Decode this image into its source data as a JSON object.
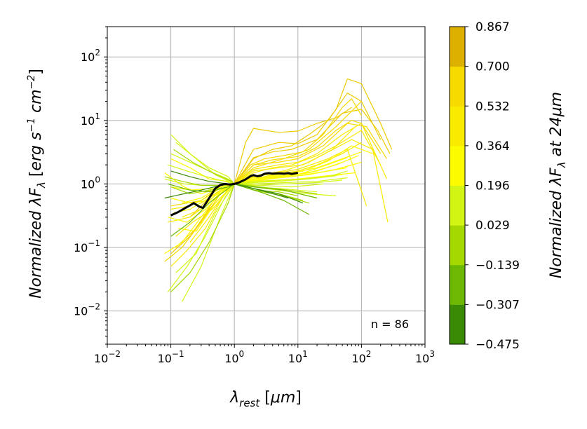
{
  "chart_data": {
    "type": "line",
    "xscale": "log",
    "yscale": "log",
    "xlim": [
      0.01,
      1000
    ],
    "ylim": [
      0.003,
      300
    ],
    "grid": true,
    "xlabel": "λrest [μm]",
    "ylabel": "Normalized λFλ [erg s⁻¹ cm⁻²]",
    "annotation": "n = 86",
    "x_ticks": [
      {
        "value": 0.01,
        "base": "10",
        "exp": "−2"
      },
      {
        "value": 0.1,
        "base": "10",
        "exp": "−1"
      },
      {
        "value": 1,
        "base": "10",
        "exp": "0"
      },
      {
        "value": 10,
        "base": "10",
        "exp": "1"
      },
      {
        "value": 100,
        "base": "10",
        "exp": "2"
      },
      {
        "value": 1000,
        "base": "10",
        "exp": "3"
      }
    ],
    "y_ticks": [
      {
        "value": 0.01,
        "base": "10",
        "exp": "−2"
      },
      {
        "value": 0.1,
        "base": "10",
        "exp": "−1"
      },
      {
        "value": 1,
        "base": "10",
        "exp": "0"
      },
      {
        "value": 10,
        "base": "10",
        "exp": "1"
      },
      {
        "value": 100,
        "base": "10",
        "exp": "2"
      }
    ],
    "colorbar": {
      "label": "Normalized λFλ at 24μm",
      "range": [
        -0.475,
        0.867
      ],
      "ticks": [
        "−0.475",
        "−0.307",
        "−0.139",
        "0.029",
        "0.196",
        "0.364",
        "0.532",
        "0.700",
        "0.867"
      ],
      "colors": [
        "#3a8a06",
        "#6cb802",
        "#a4d800",
        "#d3f514",
        "#fdfb00",
        "#f9ea00",
        "#f6da00",
        "#eecb00"
      ],
      "top_color": "#ddb000"
    },
    "median": {
      "name": "median",
      "color": "#000000",
      "x": [
        0.1,
        0.13,
        0.17,
        0.2,
        0.23,
        0.28,
        0.32,
        0.38,
        0.45,
        0.5,
        0.6,
        0.7,
        0.85,
        1.0,
        1.2,
        1.5,
        1.8,
        2.0,
        2.3,
        2.6,
        3.0,
        3.5,
        4.0,
        5.0,
        6.0,
        7.0,
        8.0,
        10.0
      ],
      "y": [
        0.32,
        0.36,
        0.42,
        0.46,
        0.5,
        0.44,
        0.42,
        0.55,
        0.72,
        0.85,
        0.96,
        1.0,
        0.98,
        1.0,
        1.06,
        1.18,
        1.33,
        1.38,
        1.32,
        1.35,
        1.45,
        1.48,
        1.45,
        1.47,
        1.45,
        1.48,
        1.44,
        1.5
      ]
    },
    "series_note": "86 individual normalized SEDs colored by their normalized value at 24 μm",
    "series": [
      {
        "color_value": 0.85,
        "x": [
          0.2,
          0.4,
          1,
          2,
          5,
          10,
          20,
          40,
          60,
          100,
          200,
          300
        ],
        "y": [
          0.3,
          0.6,
          1,
          3.5,
          4.5,
          4.3,
          6,
          15,
          45,
          38,
          9,
          3.5
        ]
      },
      {
        "color_value": 0.82,
        "x": [
          1,
          1.5,
          2,
          3,
          5,
          10,
          20,
          40,
          70
        ],
        "y": [
          1,
          4.5,
          7.5,
          7,
          6.5,
          6.8,
          9,
          11,
          16
        ]
      },
      {
        "color_value": 0.78,
        "x": [
          0.25,
          0.5,
          1,
          2,
          4,
          8,
          15,
          30,
          60,
          100,
          200
        ],
        "y": [
          0.2,
          0.5,
          1,
          2.5,
          3.5,
          4,
          6,
          10,
          27,
          20,
          5
        ]
      },
      {
        "color_value": 0.72,
        "x": [
          0.1,
          0.2,
          0.4,
          1,
          2,
          4,
          8,
          20,
          50,
          100,
          180,
          280
        ],
        "y": [
          0.08,
          0.15,
          0.4,
          1,
          2.6,
          3.2,
          3.5,
          5,
          13,
          15,
          7,
          3
        ]
      },
      {
        "color_value": 0.68,
        "x": [
          0.3,
          0.6,
          1,
          1.8,
          3,
          6,
          12,
          25,
          50,
          70,
          100
        ],
        "y": [
          0.5,
          0.8,
          1,
          2,
          2.5,
          2.8,
          3.2,
          6,
          16,
          22,
          12
        ]
      },
      {
        "color_value": 0.62,
        "x": [
          0.1,
          0.3,
          0.6,
          1,
          2,
          5,
          10,
          25,
          60,
          120,
          250
        ],
        "y": [
          0.45,
          0.55,
          0.9,
          1,
          2,
          2.2,
          2.5,
          4,
          9,
          8,
          2.5
        ]
      },
      {
        "color_value": 0.58,
        "x": [
          0.12,
          0.25,
          0.5,
          1,
          2,
          4,
          10,
          20,
          40,
          70,
          100,
          200
        ],
        "y": [
          0.1,
          0.2,
          0.6,
          1,
          2,
          2.4,
          2.7,
          3.8,
          7,
          10,
          9,
          3
        ]
      },
      {
        "color_value": 0.55,
        "x": [
          0.08,
          0.15,
          0.3,
          0.6,
          1,
          2,
          6,
          15,
          40,
          100
        ],
        "y": [
          0.06,
          0.1,
          0.25,
          0.7,
          1,
          1.8,
          2.5,
          3.5,
          8,
          20
        ]
      },
      {
        "color_value": 0.5,
        "x": [
          0.2,
          0.4,
          0.8,
          1,
          2,
          5,
          10,
          20,
          50,
          100,
          250
        ],
        "y": [
          0.12,
          0.3,
          0.85,
          1,
          1.7,
          2,
          2.2,
          3,
          6,
          9,
          1.2
        ]
      },
      {
        "color_value": 0.48,
        "x": [
          0.1,
          0.18,
          0.35,
          0.7,
          1,
          2,
          4,
          8,
          20,
          40,
          100,
          200
        ],
        "y": [
          0.05,
          0.09,
          0.2,
          0.7,
          1,
          1.5,
          1.8,
          2,
          2.8,
          4,
          7,
          2
        ]
      },
      {
        "color_value": 0.44,
        "x": [
          0.15,
          0.3,
          0.6,
          1,
          2,
          5,
          12,
          30,
          70,
          150,
          260
        ],
        "y": [
          0.3,
          0.4,
          0.8,
          1,
          1.6,
          1.8,
          2,
          3.2,
          5,
          3.5,
          0.25
        ]
      },
      {
        "color_value": 0.42,
        "x": [
          0.09,
          0.2,
          0.4,
          0.8,
          1,
          2.5,
          6,
          15,
          35,
          80
        ],
        "y": [
          0.25,
          0.3,
          0.5,
          0.9,
          1,
          1.4,
          1.6,
          2.2,
          3.5,
          8
        ]
      },
      {
        "color_value": 0.4,
        "x": [
          0.1,
          0.2,
          0.35,
          0.7,
          1,
          2,
          5,
          10,
          30,
          60,
          120
        ],
        "y": [
          0.4,
          0.45,
          0.6,
          0.95,
          1,
          1.3,
          1.5,
          1.7,
          2.5,
          3.5,
          0.45
        ]
      },
      {
        "color_value": 0.38,
        "x": [
          0.12,
          0.22,
          0.45,
          0.9,
          1,
          2,
          4,
          10,
          20,
          50,
          100
        ],
        "y": [
          0.15,
          0.25,
          0.4,
          0.9,
          1,
          1.2,
          1.4,
          1.6,
          2,
          3,
          4.5
        ]
      },
      {
        "color_value": 0.36,
        "x": [
          0.08,
          0.16,
          0.3,
          0.6,
          1,
          2,
          5,
          12,
          30,
          70,
          150
        ],
        "y": [
          1.5,
          0.9,
          0.7,
          0.9,
          1,
          1.25,
          1.3,
          1.6,
          2.3,
          4,
          3
        ]
      },
      {
        "color_value": 0.34,
        "x": [
          0.1,
          0.2,
          0.4,
          0.7,
          1,
          3,
          8,
          20,
          50,
          100
        ],
        "y": [
          0.6,
          0.5,
          0.55,
          0.85,
          1,
          1.3,
          1.5,
          1.8,
          2.5,
          3.2
        ]
      },
      {
        "color_value": 0.32,
        "x": [
          0.13,
          0.25,
          0.5,
          1,
          2,
          5,
          10,
          25,
          60
        ],
        "y": [
          0.2,
          0.18,
          0.5,
          1,
          1.2,
          1.35,
          1.4,
          1.9,
          2.6
        ]
      },
      {
        "color_value": 0.3,
        "x": [
          0.09,
          0.18,
          0.35,
          0.7,
          1,
          2,
          6,
          15,
          40,
          90
        ],
        "y": [
          0.3,
          0.25,
          0.4,
          0.8,
          1,
          1.15,
          1.3,
          1.5,
          2,
          2.8
        ]
      },
      {
        "color_value": 0.28,
        "x": [
          0.1,
          0.2,
          0.4,
          0.8,
          1,
          2.5,
          7,
          20,
          50
        ],
        "y": [
          2.5,
          1.8,
          1.2,
          1.1,
          1,
          1.2,
          1.35,
          1.6,
          2.2
        ]
      },
      {
        "color_value": 0.26,
        "x": [
          0.15,
          0.3,
          0.6,
          1,
          3,
          8,
          20,
          60
        ],
        "y": [
          0.5,
          0.6,
          0.9,
          1,
          1.2,
          1.3,
          1.5,
          1.8
        ]
      },
      {
        "color_value": 0.24,
        "x": [
          0.08,
          0.15,
          0.3,
          0.6,
          1,
          2,
          5,
          15,
          40,
          100
        ],
        "y": [
          0.08,
          0.12,
          0.3,
          0.75,
          1,
          1.1,
          1.25,
          1.4,
          1.7,
          2.2
        ]
      },
      {
        "color_value": 0.22,
        "x": [
          0.11,
          0.2,
          0.4,
          0.8,
          1,
          3,
          10,
          30,
          80
        ],
        "y": [
          0.35,
          0.4,
          0.6,
          0.9,
          1,
          1.1,
          1.2,
          1.35,
          1.5
        ]
      },
      {
        "color_value": 0.2,
        "x": [
          0.1,
          0.2,
          0.45,
          0.9,
          1,
          2,
          6,
          18,
          50
        ],
        "y": [
          0.9,
          0.8,
          0.85,
          0.95,
          1,
          1.05,
          1.15,
          1.25,
          1.4
        ]
      },
      {
        "color_value": 0.18,
        "x": [
          0.12,
          0.25,
          0.5,
          1,
          2,
          5,
          12,
          30,
          60
        ],
        "y": [
          4.5,
          2.5,
          1.4,
          1,
          1.1,
          1.15,
          1.2,
          1.3,
          1.6
        ]
      },
      {
        "color_value": 0.16,
        "x": [
          0.09,
          0.18,
          0.35,
          0.7,
          1,
          2,
          5,
          15,
          40
        ],
        "y": [
          0.02,
          0.05,
          0.15,
          0.6,
          1,
          1.05,
          1.1,
          1.2,
          1.35
        ]
      },
      {
        "color_value": 0.14,
        "x": [
          0.1,
          0.2,
          0.4,
          0.8,
          1,
          2,
          6,
          20,
          60
        ],
        "y": [
          3,
          2.2,
          1.6,
          1.2,
          1,
          1.0,
          1.05,
          1.1,
          1.25
        ]
      },
      {
        "color_value": 0.12,
        "x": [
          0.15,
          0.3,
          0.6,
          1,
          2,
          6,
          20,
          50
        ],
        "y": [
          0.014,
          0.05,
          0.3,
          1,
          0.95,
          1.0,
          1.05,
          1.15
        ]
      },
      {
        "color_value": 0.1,
        "x": [
          0.08,
          0.16,
          0.32,
          0.65,
          1,
          2.5,
          8,
          25
        ],
        "y": [
          1.2,
          1.0,
          0.95,
          0.95,
          1,
          0.95,
          0.9,
          1.0
        ]
      },
      {
        "color_value": 0.08,
        "x": [
          0.1,
          0.2,
          0.4,
          0.8,
          1,
          2,
          5,
          10,
          20
        ],
        "y": [
          6,
          3,
          1.8,
          1.3,
          1,
          0.9,
          0.85,
          0.8,
          0.75
        ]
      },
      {
        "color_value": 0.06,
        "x": [
          0.12,
          0.25,
          0.5,
          1,
          2,
          5,
          15,
          40
        ],
        "y": [
          0.04,
          0.08,
          0.35,
          1,
          0.9,
          0.8,
          0.7,
          0.65
        ]
      },
      {
        "color_value": 0.04,
        "x": [
          0.09,
          0.18,
          0.36,
          0.7,
          1,
          3,
          8,
          20
        ],
        "y": [
          2,
          1.6,
          1.3,
          1.1,
          1,
          0.85,
          0.75,
          0.6
        ]
      },
      {
        "color_value": 0.02,
        "x": [
          0.1,
          0.2,
          0.4,
          0.8,
          1,
          2,
          6,
          15
        ],
        "y": [
          0.02,
          0.04,
          0.12,
          0.5,
          1,
          0.8,
          0.65,
          0.5
        ]
      },
      {
        "color_value": 0.0,
        "x": [
          0.11,
          0.22,
          0.45,
          0.9,
          1,
          2.5,
          7,
          20
        ],
        "y": [
          3.5,
          2.2,
          1.5,
          1.1,
          1,
          0.9,
          0.8,
          0.7
        ]
      },
      {
        "color_value": -0.05,
        "x": [
          0.08,
          0.15,
          0.3,
          0.6,
          1,
          2,
          5,
          12
        ],
        "y": [
          1.3,
          1.1,
          0.95,
          0.95,
          1,
          0.85,
          0.7,
          0.55
        ]
      },
      {
        "color_value": -0.1,
        "x": [
          0.1,
          0.2,
          0.4,
          0.8,
          1,
          2,
          5,
          10
        ],
        "y": [
          0.9,
          0.7,
          0.8,
          0.9,
          1,
          0.8,
          0.75,
          0.65
        ]
      },
      {
        "color_value": -0.18,
        "x": [
          0.1,
          0.2,
          0.4,
          0.8,
          1,
          2.5,
          6,
          15
        ],
        "y": [
          0.15,
          0.25,
          0.5,
          0.85,
          1,
          0.75,
          0.55,
          0.33
        ]
      },
      {
        "color_value": -0.25,
        "x": [
          0.09,
          0.2,
          0.4,
          0.8,
          1,
          2,
          6,
          20
        ],
        "y": [
          1.0,
          0.8,
          0.75,
          0.9,
          1,
          0.9,
          0.8,
          0.6
        ]
      },
      {
        "color_value": -0.35,
        "x": [
          0.08,
          0.16,
          0.3,
          0.6,
          1,
          2,
          5,
          12
        ],
        "y": [
          0.6,
          0.7,
          0.8,
          0.95,
          1,
          0.85,
          0.7,
          0.5
        ]
      },
      {
        "color_value": -0.45,
        "x": [
          0.1,
          0.2,
          0.4,
          0.8,
          1,
          2.5,
          7
        ],
        "y": [
          1.6,
          1.3,
          1.1,
          1.0,
          1,
          0.8,
          0.6
        ]
      }
    ]
  }
}
